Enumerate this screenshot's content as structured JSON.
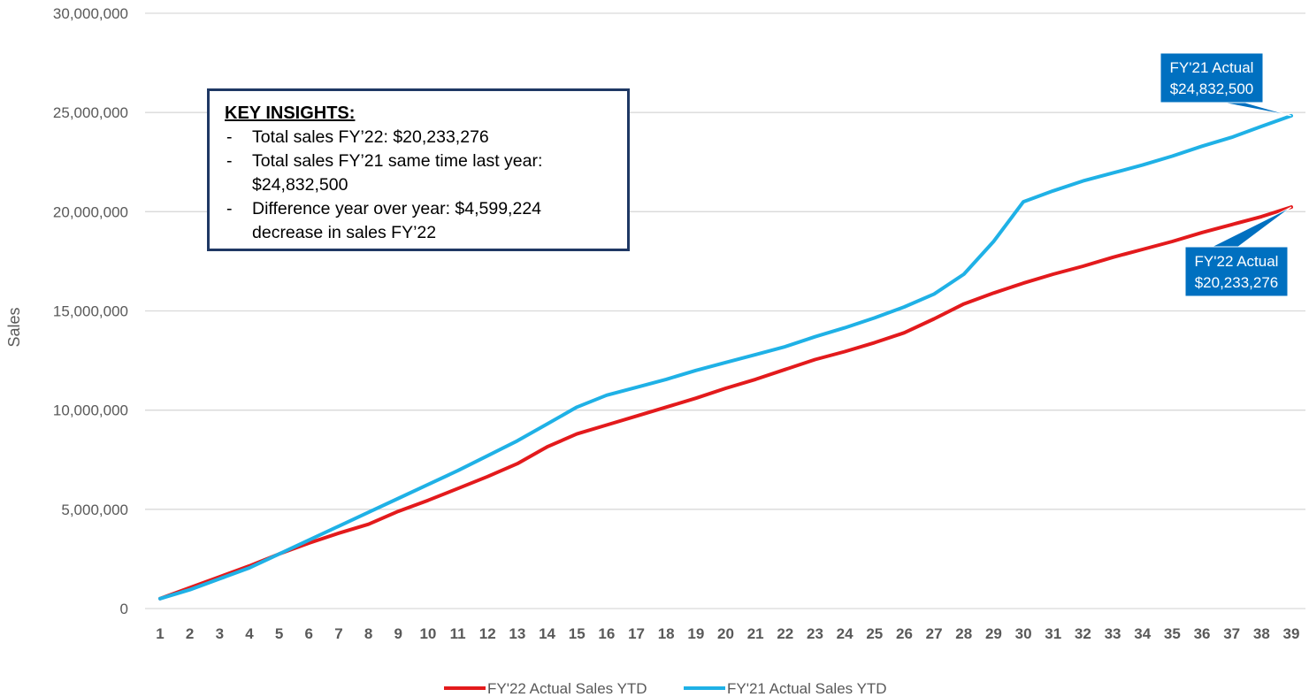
{
  "chart_data": {
    "type": "line",
    "title": "",
    "xlabel": "",
    "ylabel": "Sales",
    "ylim": [
      0,
      30000000
    ],
    "yticks": [
      0,
      5000000,
      10000000,
      15000000,
      20000000,
      25000000,
      30000000
    ],
    "ytick_labels": [
      "0",
      "5,000,000",
      "10,000,000",
      "15,000,000",
      "20,000,000",
      "25,000,000",
      "30,000,000"
    ],
    "x": [
      1,
      2,
      3,
      4,
      5,
      6,
      7,
      8,
      9,
      10,
      11,
      12,
      13,
      14,
      15,
      16,
      17,
      18,
      19,
      20,
      21,
      22,
      23,
      24,
      25,
      26,
      27,
      28,
      29,
      30,
      31,
      32,
      33,
      34,
      35,
      36,
      37,
      38,
      39
    ],
    "grid": true,
    "legend_position": "bottom",
    "series": [
      {
        "name": "FY'22 Actual Sales YTD",
        "color": "#e31a1c",
        "values": [
          500000,
          1050000,
          1600000,
          2150000,
          2750000,
          3300000,
          3800000,
          4250000,
          4900000,
          5450000,
          6050000,
          6650000,
          7300000,
          8150000,
          8800000,
          9250000,
          9700000,
          10150000,
          10600000,
          11100000,
          11550000,
          12050000,
          12550000,
          12950000,
          13400000,
          13900000,
          14600000,
          15350000,
          15900000,
          16400000,
          16850000,
          17250000,
          17700000,
          18100000,
          18500000,
          18950000,
          19350000,
          19750000,
          20233276
        ]
      },
      {
        "name": "FY'21 Actual Sales YTD",
        "color": "#1fb1e6",
        "values": [
          500000,
          950000,
          1500000,
          2050000,
          2750000,
          3450000,
          4150000,
          4850000,
          5550000,
          6250000,
          6950000,
          7700000,
          8450000,
          9300000,
          10150000,
          10750000,
          11150000,
          11550000,
          12000000,
          12400000,
          12800000,
          13200000,
          13700000,
          14150000,
          14650000,
          15200000,
          15850000,
          16850000,
          18500000,
          20500000,
          21050000,
          21550000,
          21950000,
          22350000,
          22800000,
          23300000,
          23750000,
          24300000,
          24832500
        ]
      }
    ],
    "annotations": [
      {
        "line1": "FY'21 Actual",
        "line2": "$24,832,500",
        "color": "#0070c0"
      },
      {
        "line1": "FY'22 Actual",
        "line2": "$20,233,276",
        "color": "#0070c0"
      }
    ],
    "insights": {
      "title": "KEY INSIGHTS:",
      "items": [
        "Total sales FY’22: $20,233,276",
        "Total sales FY’21 same time last year: $24,832,500",
        "Difference year over year: $4,599,224 decrease in sales FY’22"
      ]
    }
  }
}
